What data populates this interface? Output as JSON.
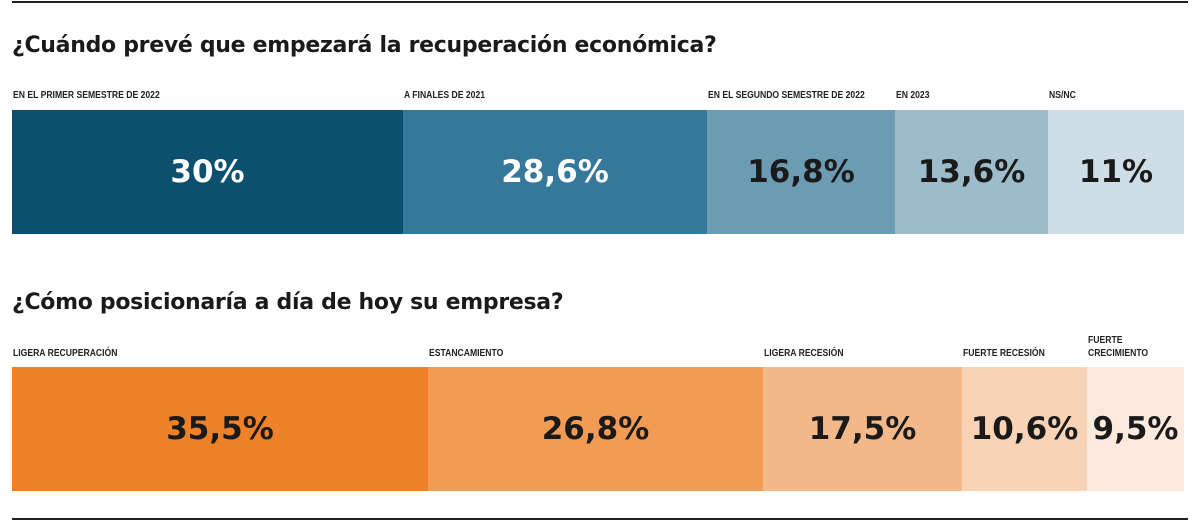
{
  "chart_data": [
    {
      "type": "bar",
      "stacked": true,
      "orientation": "horizontal",
      "title": "¿Cuándo prevé que empezará la recuperación económica?",
      "categories": [
        "En el primer semestre de 2022",
        "A finales de 2021",
        "En el segundo semestre de 2022",
        "En 2023",
        "NS/NC"
      ],
      "values": [
        30,
        28.6,
        16.8,
        13.6,
        11
      ],
      "data_labels": [
        "30%",
        "28,6%",
        "16,8%",
        "13,6%",
        "11%"
      ],
      "colors": [
        "#0d4f6e",
        "#36789a",
        "#6c9cb4",
        "#9cbccb",
        "#cfdee6"
      ],
      "text_colors": [
        "#ffffff",
        "#ffffff",
        "#1a1a1a",
        "#1a1a1a",
        "#1a1a1a"
      ]
    },
    {
      "type": "bar",
      "stacked": true,
      "orientation": "horizontal",
      "title": "¿Cómo posicionaría a día de hoy su empresa?",
      "categories": [
        "Ligera recuperación",
        "Estancamiento",
        "Ligera recesión",
        "Fuerte recesión",
        "Fuerte\ncrecimiento"
      ],
      "values": [
        35.5,
        26.8,
        17.5,
        10.6,
        9.5
      ],
      "data_labels": [
        "35,5%",
        "26,8%",
        "17,5%",
        "10,6%",
        "9,5%"
      ],
      "colors": [
        "#ef8228",
        "#f29b55",
        "#f5b888",
        "#f8d3b5",
        "#fbeadd"
      ],
      "text_colors": [
        "#1a1a1a",
        "#1a1a1a",
        "#1a1a1a",
        "#1a1a1a",
        "#1a1a1a"
      ]
    }
  ]
}
